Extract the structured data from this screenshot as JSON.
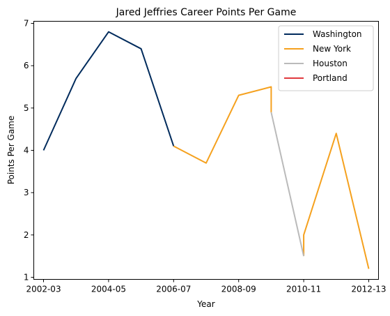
{
  "chart_data": {
    "type": "line",
    "title": "Jared Jeffries Career Points Per Game",
    "xlabel": "Year",
    "ylabel": "Points Per Game",
    "x_ticks": [
      "2002-03",
      "2004-05",
      "2006-07",
      "2008-09",
      "2010-11",
      "2012-13"
    ],
    "y_ticks": [
      1,
      2,
      3,
      4,
      5,
      6,
      7
    ],
    "xlim": [
      -0.3,
      10.3
    ],
    "ylim": [
      0.95,
      7.05
    ],
    "legend_position": "top-right",
    "series": [
      {
        "name": "Washington",
        "color": "#002b5c",
        "x": [
          0,
          1,
          2,
          3,
          4
        ],
        "y": [
          4.0,
          5.7,
          6.8,
          6.4,
          4.1
        ]
      },
      {
        "name": "New York",
        "color": "#f5a11e",
        "segments": [
          {
            "x": [
              4,
              5,
              6,
              7,
              7
            ],
            "y": [
              4.1,
              3.7,
              5.3,
              5.5,
              4.9
            ]
          },
          {
            "x": [
              8,
              8,
              9,
              10
            ],
            "y": [
              1.5,
              2.0,
              4.4,
              1.2
            ]
          }
        ]
      },
      {
        "name": "Houston",
        "color": "#bababa",
        "x": [
          7,
          8
        ],
        "y": [
          4.9,
          1.5
        ]
      },
      {
        "name": "Portland",
        "color": "#e03a3e",
        "x": [],
        "y": []
      }
    ]
  }
}
